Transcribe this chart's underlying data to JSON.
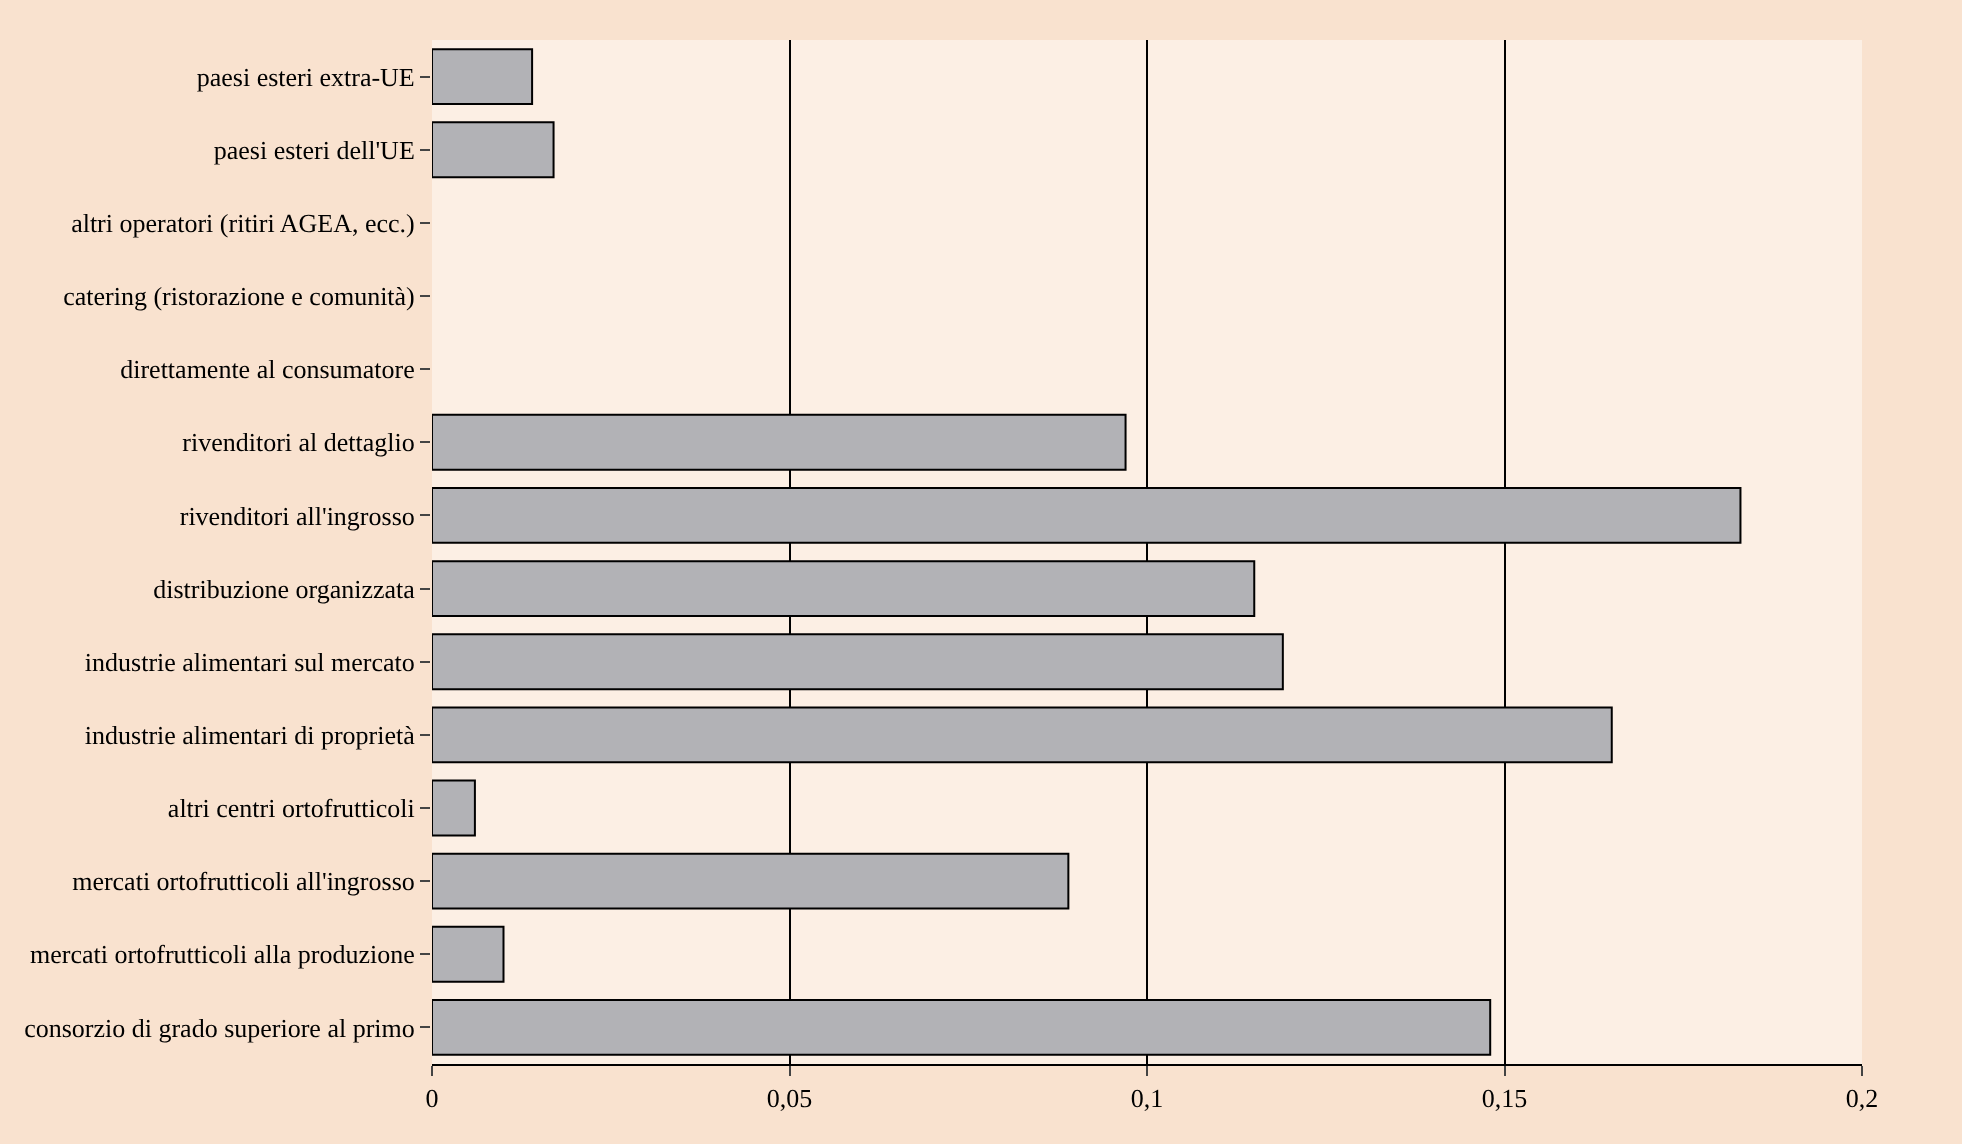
{
  "chart_data": {
    "type": "bar",
    "orientation": "horizontal",
    "categories": [
      "paesi esteri extra-UE",
      "paesi esteri dell'UE",
      "altri operatori (ritiri AGEA, ecc.)",
      "catering (ristorazione e comunità)",
      "direttamente al consumatore",
      "rivenditori al dettaglio",
      "rivenditori all'ingrosso",
      "distribuzione organizzata",
      "industrie alimentari sul mercato",
      "industrie alimentari di proprietà",
      "altri centri ortofrutticoli",
      "mercati ortofrutticoli all'ingrosso",
      "mercati ortofrutticoli alla produzione",
      "consorzio di grado superiore al primo"
    ],
    "values": [
      0.014,
      0.017,
      null,
      null,
      null,
      0.097,
      0.183,
      0.115,
      0.119,
      0.165,
      0.006,
      0.089,
      0.01,
      0.148
    ],
    "color": "#b2b2b6",
    "xlim": [
      0,
      0.2
    ],
    "xticks": [
      0,
      {
        "value": 0.05,
        "label": "0,05"
      },
      {
        "value": 0.1,
        "label": "0,1"
      },
      {
        "value": 0.15,
        "label": "0,15"
      },
      {
        "value": 0.2,
        "label": "0,2"
      }
    ],
    "grid": "x",
    "legend": false
  }
}
